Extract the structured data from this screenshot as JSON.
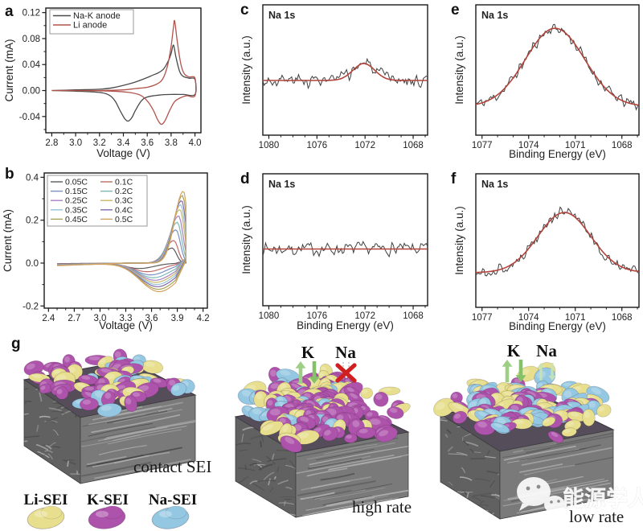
{
  "figure": {
    "background": "#ffffff"
  },
  "panel_labels": {
    "a": "a",
    "b": "b",
    "c": "c",
    "d": "d",
    "e": "e",
    "f": "f",
    "g": "g"
  },
  "chart_data": {
    "a": {
      "type": "line",
      "xlabel": "Voltage (V)",
      "ylabel": "Current (mA)",
      "xlim": [
        2.75,
        4.05
      ],
      "ylim": [
        -0.065,
        0.127
      ],
      "xticks": [
        2.8,
        3.0,
        3.2,
        3.4,
        3.6,
        3.8,
        4.0
      ],
      "yticks": [
        -0.04,
        0.0,
        0.04,
        0.08,
        0.12
      ],
      "legend_position": "top-left",
      "series": [
        {
          "name": "Na-K anode",
          "color": "#4a4a4a",
          "anodic_peak": {
            "V": 3.82,
            "mA": 0.07
          },
          "cathodic_min": {
            "V": 3.45,
            "mA": -0.047
          },
          "forward": [
            [
              2.8,
              0
            ],
            [
              3.0,
              0.001
            ],
            [
              3.2,
              0.002
            ],
            [
              3.3,
              0.004
            ],
            [
              3.4,
              0.008
            ],
            [
              3.5,
              0.013
            ],
            [
              3.6,
              0.02
            ],
            [
              3.65,
              0.024
            ],
            [
              3.7,
              0.028
            ],
            [
              3.74,
              0.034
            ],
            [
              3.78,
              0.047
            ],
            [
              3.8,
              0.057
            ],
            [
              3.82,
              0.07
            ],
            [
              3.84,
              0.052
            ],
            [
              3.87,
              0.03
            ],
            [
              3.9,
              0.022
            ],
            [
              3.95,
              0.019
            ],
            [
              4.0,
              0.017
            ]
          ],
          "reverse": [
            [
              4.0,
              -0.006
            ],
            [
              3.9,
              -0.006
            ],
            [
              3.8,
              -0.006
            ],
            [
              3.7,
              -0.007
            ],
            [
              3.6,
              -0.01
            ],
            [
              3.55,
              -0.016
            ],
            [
              3.5,
              -0.031
            ],
            [
              3.47,
              -0.042
            ],
            [
              3.44,
              -0.047
            ],
            [
              3.41,
              -0.043
            ],
            [
              3.37,
              -0.03
            ],
            [
              3.33,
              -0.016
            ],
            [
              3.28,
              -0.007
            ],
            [
              3.2,
              -0.003
            ],
            [
              3.0,
              -0.001
            ],
            [
              2.8,
              0
            ]
          ]
        },
        {
          "name": "Li anode",
          "color": "#b2544c",
          "anodic_peak": {
            "V": 3.83,
            "mA": 0.107
          },
          "cathodic_min": {
            "V": 3.73,
            "mA": -0.052
          },
          "forward": [
            [
              2.8,
              0
            ],
            [
              3.2,
              0
            ],
            [
              3.4,
              0.001
            ],
            [
              3.5,
              0.003
            ],
            [
              3.6,
              0.005
            ],
            [
              3.68,
              0.01
            ],
            [
              3.73,
              0.018
            ],
            [
              3.77,
              0.038
            ],
            [
              3.8,
              0.068
            ],
            [
              3.82,
              0.098
            ],
            [
              3.83,
              0.107
            ],
            [
              3.85,
              0.078
            ],
            [
              3.88,
              0.042
            ],
            [
              3.91,
              0.026
            ],
            [
              3.95,
              0.021
            ],
            [
              4.0,
              0.019
            ]
          ],
          "reverse": [
            [
              4.0,
              -0.008
            ],
            [
              3.93,
              -0.008
            ],
            [
              3.88,
              -0.011
            ],
            [
              3.83,
              -0.017
            ],
            [
              3.79,
              -0.03
            ],
            [
              3.75,
              -0.046
            ],
            [
              3.72,
              -0.052
            ],
            [
              3.69,
              -0.046
            ],
            [
              3.65,
              -0.03
            ],
            [
              3.6,
              -0.016
            ],
            [
              3.54,
              -0.007
            ],
            [
              3.45,
              -0.003
            ],
            [
              3.3,
              -0.001
            ],
            [
              3.0,
              0
            ],
            [
              2.8,
              0
            ]
          ]
        }
      ]
    },
    "b": {
      "type": "line",
      "xlabel": "Voltage (V)",
      "ylabel": "Current (mA)",
      "xlim": [
        2.35,
        4.25
      ],
      "ylim": [
        -0.21,
        0.42
      ],
      "xticks": [
        2.4,
        2.7,
        3.0,
        3.3,
        3.6,
        3.9,
        4.2
      ],
      "yticks": [
        -0.2,
        0.0,
        0.2,
        0.4
      ],
      "legend_position": "top-left",
      "series": [
        {
          "name": "0.05C",
          "color": "#5a5a5a",
          "anodic_peak": {
            "V": 3.84,
            "mA": 0.07
          },
          "cathodic_min": {
            "V": 3.46,
            "mA": -0.025
          }
        },
        {
          "name": "0.1C",
          "color": "#bf6b66",
          "anodic_peak": {
            "V": 3.86,
            "mA": 0.105
          },
          "cathodic_min": {
            "V": 3.55,
            "mA": -0.04
          }
        },
        {
          "name": "0.15C",
          "color": "#7b8fc2",
          "anodic_peak": {
            "V": 3.885,
            "mA": 0.155
          },
          "cathodic_min": {
            "V": 3.59,
            "mA": -0.055
          }
        },
        {
          "name": "0.2C",
          "color": "#7ab8b4",
          "anodic_peak": {
            "V": 3.9,
            "mA": 0.19
          },
          "cathodic_min": {
            "V": 3.62,
            "mA": -0.068
          }
        },
        {
          "name": "0.25C",
          "color": "#a97fc0",
          "anodic_peak": {
            "V": 3.915,
            "mA": 0.22
          },
          "cathodic_min": {
            "V": 3.64,
            "mA": -0.08
          }
        },
        {
          "name": "0.3C",
          "color": "#c9b765",
          "anodic_peak": {
            "V": 3.93,
            "mA": 0.25
          },
          "cathodic_min": {
            "V": 3.65,
            "mA": -0.09
          }
        },
        {
          "name": "0.35C",
          "color": "#93c3d8",
          "anodic_peak": {
            "V": 3.94,
            "mA": 0.272
          },
          "cathodic_min": {
            "V": 3.66,
            "mA": -0.1
          }
        },
        {
          "name": "0.4C",
          "color": "#8367ae",
          "anodic_peak": {
            "V": 3.95,
            "mA": 0.292
          },
          "cathodic_min": {
            "V": 3.67,
            "mA": -0.11
          }
        },
        {
          "name": "0.45C",
          "color": "#a8a356",
          "anodic_peak": {
            "V": 3.96,
            "mA": 0.315
          },
          "cathodic_min": {
            "V": 3.68,
            "mA": -0.122
          }
        },
        {
          "name": "0.5C",
          "color": "#d2a35f",
          "anodic_peak": {
            "V": 3.97,
            "mA": 0.335
          },
          "cathodic_min": {
            "V": 3.69,
            "mA": -0.133
          }
        }
      ]
    },
    "c": {
      "type": "line",
      "annotation": "Na 1s",
      "xlabel": "",
      "ylabel": "Intensity (a.u.)",
      "xlim": [
        1080.5,
        1066.8
      ],
      "xticks": [
        1080,
        1076,
        1072,
        1068
      ],
      "peak": {
        "center": 1072.1,
        "amplitude": 0.13,
        "sigma": 0.9,
        "baseline": 0.42
      },
      "noise_amp": 0.05,
      "data_color": "#3f3f3f",
      "fit_color": "#b2443c"
    },
    "d": {
      "type": "line",
      "annotation": "Na 1s",
      "xlabel": "Binding Energy (eV)",
      "ylabel": "Intensity (a.u.)",
      "xlim": [
        1080.5,
        1066.8
      ],
      "xticks": [
        1080,
        1076,
        1072,
        1068
      ],
      "peak": {
        "center": 1072.0,
        "amplitude": 0.0,
        "sigma": 1.0,
        "baseline": 0.43
      },
      "noise_amp": 0.05,
      "data_color": "#3f3f3f",
      "fit_color": "#b2443c"
    },
    "e": {
      "type": "line",
      "annotation": "Na 1s",
      "xlabel": "Binding Energy (eV)",
      "ylabel": "Intensity (a.u.)",
      "xlim": [
        1077.4,
        1066.9
      ],
      "xticks": [
        1077,
        1074,
        1071,
        1068
      ],
      "peak": {
        "center": 1072.3,
        "amplitude": 0.6,
        "sigma": 1.9,
        "baseline": 0.22
      },
      "noise_amp": 0.045,
      "data_color": "#3f3f3f",
      "fit_color": "#b2443c"
    },
    "f": {
      "type": "line",
      "annotation": "Na 1s",
      "xlabel": "Binding Energy (eV)",
      "ylabel": "Intensity (a.u.)",
      "xlim": [
        1077.4,
        1066.9
      ],
      "xticks": [
        1077,
        1074,
        1071,
        1068
      ],
      "peak": {
        "center": 1071.7,
        "amplitude": 0.45,
        "sigma": 1.7,
        "baseline": 0.26
      },
      "noise_amp": 0.04,
      "data_color": "#3f3f3f",
      "fit_color": "#b2443c"
    }
  },
  "panel_g": {
    "label": "g",
    "blocks": [
      {
        "caption": "contact SEI",
        "blob_layer": "thin"
      },
      {
        "caption": "high rate",
        "blob_layer": "thick",
        "k_label": "K",
        "na_label": "Na",
        "na_blocked": true
      },
      {
        "caption": "low rate",
        "blob_layer": "medium",
        "k_label": "K",
        "na_label": "Na",
        "na_blocked": false
      }
    ],
    "legend": [
      {
        "label": "Li-SEI",
        "color": "#e7df8e"
      },
      {
        "label": "K-SEI",
        "color": "#ae53ab"
      },
      {
        "label": "Na-SEI",
        "color": "#93c7e2"
      }
    ],
    "colors": {
      "blob_yellow": "#e7df8e",
      "blob_purple": "#ae53ab",
      "blob_blue": "#93c7e2",
      "arrow_green": "#85c168",
      "arrow_green_light": "#9fcf87",
      "arrow_faint": "#c9e3b4",
      "cross_red": "#cf1f1f",
      "rock_left": "#616161",
      "rock_right": "#7a7a7a",
      "rock_top": "#554d59",
      "streak_light": "#b2b2b2",
      "streak_dark": "#474747"
    },
    "watermark": {
      "text": "能源学人",
      "icon": "wechat-icon"
    }
  }
}
